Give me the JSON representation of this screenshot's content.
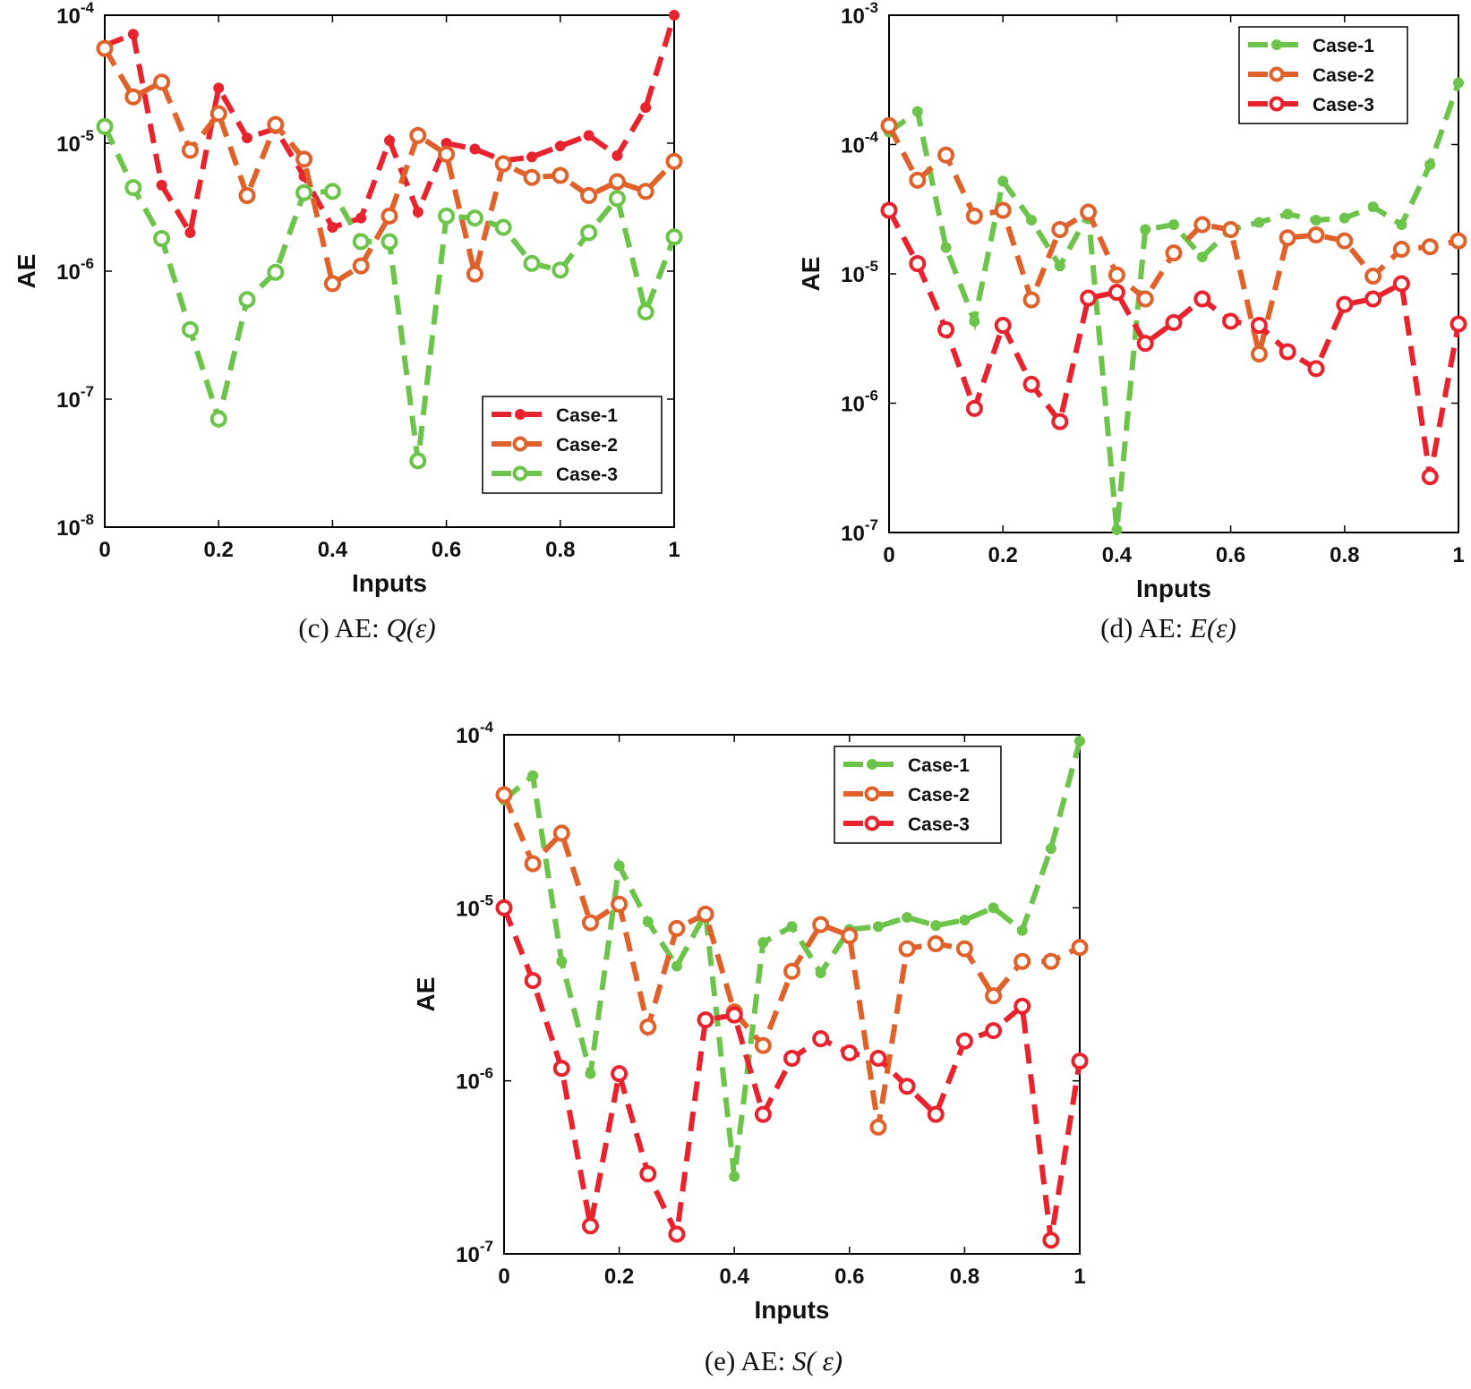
{
  "colors": {
    "red": "#e8232d",
    "orange": "#e0622b",
    "green": "#6cc44a"
  },
  "chart_data": [
    {
      "id": "c",
      "type": "line",
      "yscale": "log",
      "caption_prefix": "(c) AE: ",
      "caption_math": "Q(ε)",
      "xlabel": "Inputs",
      "ylabel": "AE",
      "xlim": [
        0,
        1
      ],
      "ylim_exp": [
        -8,
        -4
      ],
      "xticks": [
        "0",
        "0.2",
        "0.4",
        "0.6",
        "0.8",
        "1"
      ],
      "ytick_base": "10",
      "ytick_exponents": [
        "-8",
        "-7",
        "-6",
        "-5",
        "-4"
      ],
      "legend_position": "bottom-right",
      "x": [
        0,
        0.05,
        0.1,
        0.15,
        0.2,
        0.25,
        0.3,
        0.35,
        0.4,
        0.45,
        0.5,
        0.55,
        0.6,
        0.65,
        0.7,
        0.75,
        0.8,
        0.85,
        0.9,
        0.95,
        1
      ],
      "series": [
        {
          "name": "Case-1",
          "color": "red",
          "marker": "filled",
          "values": [
            5.8e-05,
            7.1e-05,
            4.7e-06,
            2e-06,
            2.7e-05,
            1.1e-05,
            1.3e-05,
            5.5e-06,
            2.2e-06,
            2.6e-06,
            1.05e-05,
            2.9e-06,
            1e-05,
            9e-06,
            7.3e-06,
            7.8e-06,
            9.5e-06,
            1.15e-05,
            8e-06,
            1.9e-05,
            0.0001
          ]
        },
        {
          "name": "Case-2",
          "color": "orange",
          "marker": "open",
          "values": [
            5.5e-05,
            2.3e-05,
            3e-05,
            8.8e-06,
            1.7e-05,
            3.9e-06,
            1.4e-05,
            7.5e-06,
            8e-07,
            1.1e-06,
            2.7e-06,
            1.15e-05,
            8.2e-06,
            9.5e-07,
            6.9e-06,
            5.4e-06,
            5.6e-06,
            3.9e-06,
            5e-06,
            4.2e-06,
            7.2e-06
          ]
        },
        {
          "name": "Case-3",
          "color": "green",
          "marker": "open",
          "values": [
            1.35e-05,
            4.5e-06,
            1.8e-06,
            3.5e-07,
            7e-08,
            6e-07,
            9.8e-07,
            4.1e-06,
            4.2e-06,
            1.7e-06,
            1.7e-06,
            3.3e-08,
            2.7e-06,
            2.6e-06,
            2.2e-06,
            1.15e-06,
            1.02e-06,
            2e-06,
            3.7e-06,
            4.8e-07,
            1.85e-06
          ]
        }
      ]
    },
    {
      "id": "d",
      "type": "line",
      "yscale": "log",
      "caption_prefix": "(d) AE: ",
      "caption_math": "E(ε)",
      "xlabel": "Inputs",
      "ylabel": "AE",
      "xlim": [
        0,
        1
      ],
      "ylim_exp": [
        -7,
        -3
      ],
      "xticks": [
        "0",
        "0.2",
        "0.4",
        "0.6",
        "0.8",
        "1"
      ],
      "ytick_base": "10",
      "ytick_exponents": [
        "-7",
        "-6",
        "-5",
        "-4",
        "-3"
      ],
      "legend_position": "top-right",
      "x": [
        0,
        0.05,
        0.1,
        0.15,
        0.2,
        0.25,
        0.3,
        0.35,
        0.4,
        0.45,
        0.5,
        0.55,
        0.6,
        0.65,
        0.7,
        0.75,
        0.8,
        0.85,
        0.9,
        0.95,
        1
      ],
      "series": [
        {
          "name": "Case-1",
          "color": "green",
          "marker": "filled",
          "values": [
            0.000125,
            0.00018,
            1.6e-05,
            4.3e-06,
            5.2e-05,
            2.6e-05,
            1.15e-05,
            2.9e-05,
            1.05e-07,
            2.2e-05,
            2.4e-05,
            1.35e-05,
            2.2e-05,
            2.5e-05,
            2.9e-05,
            2.6e-05,
            2.7e-05,
            3.3e-05,
            2.4e-05,
            7e-05,
            0.0003
          ]
        },
        {
          "name": "Case-2",
          "color": "orange",
          "marker": "open",
          "values": [
            0.00014,
            5.3e-05,
            8.3e-05,
            2.8e-05,
            3.1e-05,
            6.3e-06,
            2.2e-05,
            3e-05,
            9.8e-06,
            6.4e-06,
            1.45e-05,
            2.4e-05,
            2.2e-05,
            2.4e-06,
            1.9e-05,
            2e-05,
            1.8e-05,
            9.6e-06,
            1.55e-05,
            1.62e-05,
            1.8e-05
          ]
        },
        {
          "name": "Case-3",
          "color": "red",
          "marker": "open",
          "values": [
            3.1e-05,
            1.2e-05,
            3.7e-06,
            9.1e-07,
            4e-06,
            1.4e-06,
            7.2e-07,
            6.5e-06,
            7.2e-06,
            2.9e-06,
            4.2e-06,
            6.4e-06,
            4.3e-06,
            4e-06,
            2.5e-06,
            1.85e-06,
            5.8e-06,
            6.4e-06,
            8.4e-06,
            2.7e-07,
            4.1e-06
          ]
        }
      ]
    },
    {
      "id": "e",
      "type": "line",
      "yscale": "log",
      "caption_prefix": "(e) AE: ",
      "caption_math": "S( ε)",
      "xlabel": "Inputs",
      "ylabel": "AE",
      "xlim": [
        0,
        1
      ],
      "ylim_exp": [
        -7,
        -4
      ],
      "xticks": [
        "0",
        "0.2",
        "0.4",
        "0.6",
        "0.8",
        "1"
      ],
      "ytick_base": "10",
      "ytick_exponents": [
        "-7",
        "-6",
        "-5",
        "-4"
      ],
      "legend_position": "top-right",
      "x": [
        0,
        0.05,
        0.1,
        0.15,
        0.2,
        0.25,
        0.3,
        0.35,
        0.4,
        0.45,
        0.5,
        0.55,
        0.6,
        0.65,
        0.7,
        0.75,
        0.8,
        0.85,
        0.9,
        0.95,
        1
      ],
      "series": [
        {
          "name": "Case-1",
          "color": "green",
          "marker": "filled",
          "values": [
            4.2e-05,
            5.8e-05,
            4.9e-06,
            1.1e-06,
            1.75e-05,
            8.3e-06,
            4.6e-06,
            9.3e-06,
            2.8e-07,
            6.3e-06,
            7.8e-06,
            4.2e-06,
            7.5e-06,
            7.8e-06,
            8.8e-06,
            7.9e-06,
            8.5e-06,
            1e-05,
            7.4e-06,
            2.2e-05,
            9.2e-05
          ]
        },
        {
          "name": "Case-2",
          "color": "orange",
          "marker": "open",
          "values": [
            4.5e-05,
            1.8e-05,
            2.7e-05,
            8.2e-06,
            1.05e-05,
            2.05e-06,
            7.6e-06,
            9.2e-06,
            2.5e-06,
            1.6e-06,
            4.3e-06,
            8e-06,
            6.9e-06,
            5.4e-07,
            5.8e-06,
            6.2e-06,
            5.8e-06,
            3.1e-06,
            4.9e-06,
            4.9e-06,
            5.9e-06
          ]
        },
        {
          "name": "Case-3",
          "color": "red",
          "marker": "open",
          "values": [
            1e-05,
            3.8e-06,
            1.18e-06,
            1.45e-07,
            1.1e-06,
            2.9e-07,
            1.3e-07,
            2.25e-06,
            2.4e-06,
            6.4e-07,
            1.35e-06,
            1.75e-06,
            1.45e-06,
            1.35e-06,
            9.3e-07,
            6.4e-07,
            1.7e-06,
            1.95e-06,
            2.7e-06,
            1.2e-07,
            1.3e-06
          ]
        }
      ]
    }
  ]
}
